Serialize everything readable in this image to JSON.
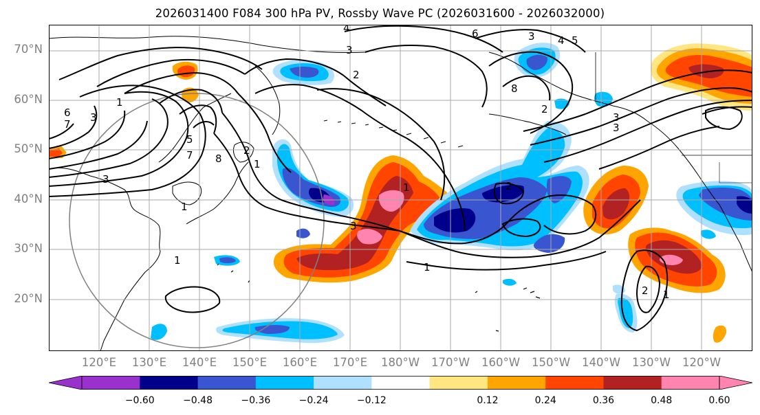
{
  "title": "2026031400 F084 300 hPa PV, Rossby Wave PC (2026031600 - 2026032000)",
  "lat_labels": [
    "70°N",
    "60°N",
    "50°N",
    "40°N",
    "30°N",
    "20°N"
  ],
  "lon_labels": [
    "120°E",
    "130°E",
    "140°E",
    "150°E",
    "160°E",
    "170°E",
    "180°W",
    "170°W",
    "160°W",
    "150°W",
    "140°W",
    "130°W",
    "120°W"
  ],
  "contour_labels": [
    "4",
    "3",
    "6",
    "4",
    "5",
    "2",
    "3",
    "8",
    "1",
    "7",
    "6",
    "3",
    "5",
    "7",
    "8",
    "2",
    "3",
    "1",
    "1",
    "3",
    "1",
    "2",
    "1",
    "1",
    "2",
    "1",
    "3",
    "3",
    "2"
  ],
  "colorbar": {
    "ticks": [
      "−0.60",
      "−0.48",
      "−0.36",
      "−0.24",
      "−0.12",
      "0.12",
      "0.24",
      "0.36",
      "0.48",
      "0.60"
    ],
    "colors": [
      "#9932cc",
      "#00008b",
      "#3a55d0",
      "#00bfff",
      "#b0e0ff",
      "#ffffff",
      "#ffe680",
      "#ffa500",
      "#ff4500",
      "#b22222",
      "#ff85b0",
      "#ff85b0"
    ]
  },
  "shading_colors": {
    "neg_strong": "#00008b",
    "neg_mid": "#3a55d0",
    "neg_weak": "#00bfff",
    "neg_faint": "#b0e0ff",
    "pos_faint": "#ffe680",
    "pos_weak": "#ffa500",
    "pos_mid": "#ff4500",
    "pos_strong": "#b22222",
    "pos_max": "#ff85b0",
    "purple": "#9932cc"
  }
}
